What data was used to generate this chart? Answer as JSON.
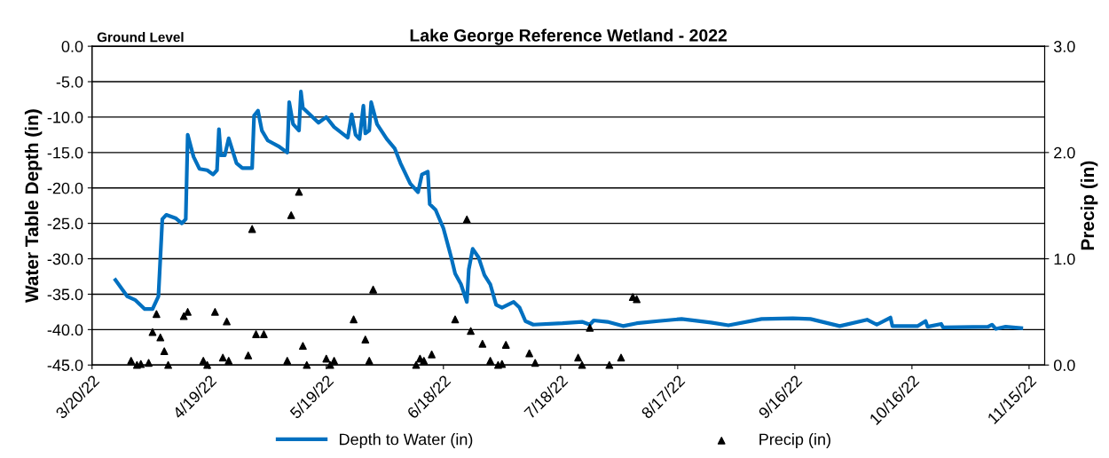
{
  "chart_data": {
    "type": "line",
    "title": "Lake George Reference Wetland - 2022",
    "ylabel": "Water Table Depth (in)",
    "y2label": "Precip (in)",
    "annotations": [
      "Ground Level"
    ],
    "xlim": [
      "2022-03-20",
      "2022-11-19"
    ],
    "xticks": [
      {
        "value": "2022-03-20",
        "label": "3/20/22"
      },
      {
        "value": "2022-04-19",
        "label": "4/19/22"
      },
      {
        "value": "2022-05-19",
        "label": "5/19/22"
      },
      {
        "value": "2022-06-18",
        "label": "6/18/22"
      },
      {
        "value": "2022-07-18",
        "label": "7/18/22"
      },
      {
        "value": "2022-08-17",
        "label": "8/17/22"
      },
      {
        "value": "2022-09-16",
        "label": "9/16/22"
      },
      {
        "value": "2022-10-16",
        "label": "10/16/22"
      },
      {
        "value": "2022-11-15",
        "label": "11/15/22"
      }
    ],
    "ylim": [
      -45,
      0
    ],
    "yticks": [
      {
        "value": 0,
        "label": "0.0"
      },
      {
        "value": -5,
        "label": "-5.0"
      },
      {
        "value": -10,
        "label": "-10.0"
      },
      {
        "value": -15,
        "label": "-15.0"
      },
      {
        "value": -20,
        "label": "-20.0"
      },
      {
        "value": -25,
        "label": "-25.0"
      },
      {
        "value": -30,
        "label": "-30.0"
      },
      {
        "value": -35,
        "label": "-35.0"
      },
      {
        "value": -40,
        "label": "-40.0"
      },
      {
        "value": -45,
        "label": "-45.0"
      }
    ],
    "y2lim": [
      0,
      3
    ],
    "y2ticks": [
      {
        "value": 0,
        "label": "0.0"
      },
      {
        "value": 1,
        "label": "1.0"
      },
      {
        "value": 2,
        "label": "2.0"
      },
      {
        "value": 3,
        "label": "3.0"
      }
    ],
    "grid": "y",
    "legend": "bottom",
    "series": [
      {
        "name": "Depth to Water (in)",
        "color": "#0070c0",
        "marker": "none",
        "line_style": "solid",
        "x": [
          "2022-03-26",
          "2022-03-29",
          "2022-03-31",
          "2022-04-02T12:00",
          "2022-04-04T12:00",
          "2022-04-06",
          "2022-04-07",
          "2022-04-08",
          "2022-04-10T12:00",
          "2022-04-12",
          "2022-04-13",
          "2022-04-13T12:00",
          "2022-04-15",
          "2022-04-16T12:00",
          "2022-04-18T12:00",
          "2022-04-20",
          "2022-04-21",
          "2022-04-21T12:00",
          "2022-04-22",
          "2022-04-23",
          "2022-04-24",
          "2022-04-26",
          "2022-04-27T12:00",
          "2022-04-30",
          "2022-04-30T12:00",
          "2022-05-01T12:00",
          "2022-05-02T12:00",
          "2022-05-04",
          "2022-05-07",
          "2022-05-09",
          "2022-05-09T12:00",
          "2022-05-10T12:00",
          "2022-05-12",
          "2022-05-12T12:00",
          "2022-05-13",
          "2022-05-17",
          "2022-05-19",
          "2022-05-21",
          "2022-05-24T12:00",
          "2022-05-25T12:00",
          "2022-05-26T12:00",
          "2022-05-27T12:00",
          "2022-05-28T12:00",
          "2022-05-29",
          "2022-05-30",
          "2022-05-30T12:00",
          "2022-06-01",
          "2022-06-03T12:00",
          "2022-06-05T12:00",
          "2022-06-07",
          "2022-06-09T12:00",
          "2022-06-11T12:00",
          "2022-06-12T12:00",
          "2022-06-14",
          "2022-06-14T12:00",
          "2022-06-16",
          "2022-06-18",
          "2022-06-20",
          "2022-06-21",
          "2022-06-22T12:00",
          "2022-06-24",
          "2022-06-24T12:00",
          "2022-06-25T12:00",
          "2022-06-27",
          "2022-06-28T12:00",
          "2022-06-30",
          "2022-07-01T12:00",
          "2022-07-03",
          "2022-07-06",
          "2022-07-07T12:00",
          "2022-07-09",
          "2022-07-11",
          "2022-07-18T12:00",
          "2022-07-23T12:00",
          "2022-07-25T12:00",
          "2022-07-26T12:00",
          "2022-07-30",
          "2022-08-03",
          "2022-08-06T12:00",
          "2022-08-12",
          "2022-08-18",
          "2022-08-25T12:00",
          "2022-08-30",
          "2022-09-07T12:00",
          "2022-09-15T12:00",
          "2022-09-20",
          "2022-09-27T12:00",
          "2022-10-04T12:00",
          "2022-10-07",
          "2022-10-10T12:00",
          "2022-10-11",
          "2022-10-17T12:00",
          "2022-10-19T12:00",
          "2022-10-20",
          "2022-10-23T12:00",
          "2022-10-24",
          "2022-11-04T12:00",
          "2022-11-05T12:00",
          "2022-11-06T12:00",
          "2022-11-09",
          "2022-11-13"
        ],
        "values": [
          -33.0,
          -35.3,
          -35.8,
          -37.1,
          -37.1,
          -35.3,
          -24.4,
          -23.8,
          -24.3,
          -25.0,
          -24.4,
          -12.5,
          -15.6,
          -17.3,
          -17.5,
          -18.1,
          -17.5,
          -11.7,
          -15.4,
          -15.4,
          -13.0,
          -16.5,
          -17.2,
          -17.2,
          -9.8,
          -9.1,
          -11.9,
          -13.3,
          -14.2,
          -15.0,
          -7.9,
          -11.0,
          -11.9,
          -6.4,
          -8.7,
          -10.8,
          -10.0,
          -11.4,
          -12.9,
          -9.6,
          -12.5,
          -13.1,
          -8.4,
          -12.3,
          -11.9,
          -7.9,
          -11.0,
          -13.1,
          -14.4,
          -16.5,
          -19.4,
          -20.6,
          -18.1,
          -17.7,
          -22.3,
          -23.1,
          -25.7,
          -29.8,
          -32.1,
          -33.6,
          -36.1,
          -31.5,
          -28.6,
          -29.8,
          -32.3,
          -33.6,
          -36.5,
          -36.9,
          -36.1,
          -36.9,
          -38.8,
          -39.3,
          -39.1,
          -38.9,
          -39.3,
          -38.7,
          -38.9,
          -39.5,
          -39.1,
          -38.8,
          -38.5,
          -39.0,
          -39.4,
          -38.5,
          -38.4,
          -38.5,
          -39.5,
          -38.6,
          -39.3,
          -38.3,
          -39.5,
          -39.5,
          -38.8,
          -39.6,
          -39.2,
          -39.7,
          -39.6,
          -39.3,
          -39.9,
          -39.6,
          -39.8
        ]
      },
      {
        "name": "Precip (in)",
        "type": "scatter",
        "axis": "y2",
        "color": "#000000",
        "marker": "triangle",
        "x": [
          "2022-03-30",
          "2022-03-31T12:00",
          "2022-04-01T12:00",
          "2022-04-03T12:00",
          "2022-04-04T12:00",
          "2022-04-05T12:00",
          "2022-04-06T12:00",
          "2022-04-07T12:00",
          "2022-04-08T12:00",
          "2022-04-12T12:00",
          "2022-04-13T12:00",
          "2022-04-17T12:00",
          "2022-04-18T12:00",
          "2022-04-20T12:00",
          "2022-04-22T12:00",
          "2022-04-23T12:00",
          "2022-04-24",
          "2022-04-29",
          "2022-04-30",
          "2022-05-01",
          "2022-05-03",
          "2022-05-09",
          "2022-05-10",
          "2022-05-12",
          "2022-05-13",
          "2022-05-14",
          "2022-05-19",
          "2022-05-20",
          "2022-05-21",
          "2022-05-26",
          "2022-05-29",
          "2022-05-30",
          "2022-05-31",
          "2022-06-11",
          "2022-06-12",
          "2022-06-13",
          "2022-06-15",
          "2022-06-21",
          "2022-06-24",
          "2022-06-25",
          "2022-06-28",
          "2022-06-30",
          "2022-07-02",
          "2022-07-03",
          "2022-07-04",
          "2022-07-10",
          "2022-07-11T12:00",
          "2022-07-22T12:00",
          "2022-07-23T12:00",
          "2022-07-25T12:00",
          "2022-07-30T12:00",
          "2022-08-02T12:00",
          "2022-08-05T12:00",
          "2022-08-06T12:00"
        ],
        "values": [
          0.04,
          0.0,
          0.01,
          0.02,
          0.31,
          0.48,
          0.26,
          0.13,
          0.0,
          0.46,
          0.5,
          0.04,
          0.0,
          0.5,
          0.07,
          0.41,
          0.04,
          0.09,
          1.28,
          0.29,
          0.29,
          0.04,
          1.41,
          1.63,
          0.18,
          0.0,
          0.06,
          0.0,
          0.04,
          0.43,
          0.24,
          0.04,
          0.71,
          0.0,
          0.06,
          0.04,
          0.1,
          0.43,
          1.37,
          0.32,
          0.2,
          0.04,
          0.0,
          0.01,
          0.19,
          0.11,
          0.02,
          0.07,
          0.0,
          0.35,
          0.0,
          0.07,
          0.64,
          0.62
        ]
      }
    ]
  }
}
